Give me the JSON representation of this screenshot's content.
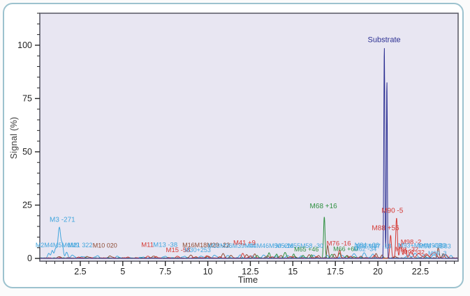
{
  "chart_data": {
    "type": "line",
    "title": "",
    "xlabel": "Time",
    "ylabel": "Signal (%)",
    "xlim": [
      0.12,
      24.72
    ],
    "ylim": [
      0,
      115
    ],
    "x_ticks": [
      2.5,
      5,
      7.5,
      10,
      12.5,
      15,
      17.5,
      20,
      22.5
    ],
    "x_minor_step": 0.5,
    "y_ticks": [
      0,
      25,
      50,
      75,
      100
    ],
    "y_minor_step": 5,
    "grid": false,
    "legend": "none",
    "plot_bg": "#e8e6f2",
    "plot_border": "#5f5f6b",
    "tick_label_color": "#1f1f1f",
    "colors": {
      "substrate": "#2b2f92",
      "metabolite_blue": "#41a5dd",
      "metabolite_red": "#d43a35",
      "metabolite_green": "#2e9040",
      "metabolite_brown": "#8c4a33"
    },
    "series": [
      {
        "name": "metabolites-blue",
        "color": "metabolite_blue",
        "noise": 0.45,
        "peaks": [
          [
            0.65,
            2.2,
            0.07
          ],
          [
            0.85,
            3.2,
            0.06
          ],
          [
            1.05,
            4.5,
            0.07
          ],
          [
            1.27,
            14.5,
            0.08
          ],
          [
            1.45,
            5.5,
            0.06
          ],
          [
            1.7,
            2.8,
            0.07
          ],
          [
            2.05,
            1.4,
            0.09
          ],
          [
            2.6,
            0.8,
            0.1
          ],
          [
            3.5,
            1.1,
            0.1
          ],
          [
            4.7,
            0.7,
            0.1
          ],
          [
            6.2,
            0.6,
            0.1
          ],
          [
            7.5,
            1.0,
            0.09
          ],
          [
            8.6,
            0.8,
            0.1
          ],
          [
            9.6,
            1.1,
            0.1
          ],
          [
            10.4,
            1.4,
            0.1
          ],
          [
            11.2,
            1.1,
            0.09
          ],
          [
            11.9,
            1.3,
            0.09
          ],
          [
            12.6,
            1.1,
            0.09
          ],
          [
            13.3,
            1.4,
            0.1
          ],
          [
            14.0,
            1.2,
            0.09
          ],
          [
            14.7,
            1.3,
            0.1
          ],
          [
            15.5,
            1.1,
            0.09
          ],
          [
            16.2,
            1.3,
            0.09
          ],
          [
            17.0,
            1.1,
            0.09
          ],
          [
            17.9,
            1.4,
            0.1
          ],
          [
            18.6,
            2.2,
            0.1
          ],
          [
            19.2,
            2.6,
            0.09
          ],
          [
            19.7,
            1.8,
            0.09
          ],
          [
            21.8,
            1.6,
            0.1
          ],
          [
            22.2,
            2.0,
            0.12
          ],
          [
            22.7,
            1.4,
            0.1
          ],
          [
            23.3,
            1.6,
            0.12
          ],
          [
            23.9,
            1.8,
            0.1
          ],
          [
            24.3,
            1.2,
            0.08
          ]
        ]
      },
      {
        "name": "metabolites-brown",
        "color": "metabolite_brown",
        "noise": 0.4,
        "peaks": [
          [
            1.3,
            0.7,
            0.08
          ],
          [
            2.9,
            0.9,
            0.09
          ],
          [
            4.25,
            1.1,
            0.09
          ],
          [
            6.8,
            1.0,
            0.09
          ],
          [
            9.0,
            1.2,
            0.1
          ],
          [
            10.0,
            1.0,
            0.09
          ],
          [
            10.9,
            1.9,
            0.08
          ],
          [
            11.35,
            1.4,
            0.07
          ],
          [
            12.3,
            1.5,
            0.08
          ],
          [
            12.75,
            1.8,
            0.07
          ],
          [
            13.5,
            1.1,
            0.08
          ],
          [
            14.3,
            1.3,
            0.08
          ],
          [
            15.1,
            1.0,
            0.08
          ],
          [
            15.95,
            1.6,
            0.07
          ],
          [
            16.5,
            1.3,
            0.07
          ],
          [
            17.05,
            6,
            0.05
          ],
          [
            17.45,
            1.8,
            0.07
          ],
          [
            18.2,
            1.2,
            0.08
          ],
          [
            19.0,
            1.0,
            0.08
          ],
          [
            19.9,
            2.2,
            0.06
          ],
          [
            20.25,
            1.6,
            0.06
          ],
          [
            21.0,
            1.0,
            0.07
          ],
          [
            22.9,
            1.6,
            0.09
          ],
          [
            23.55,
            5,
            0.055
          ],
          [
            23.85,
            1.8,
            0.07
          ]
        ]
      },
      {
        "name": "metabolites-green",
        "color": "metabolite_green",
        "noise": 0.3,
        "peaks": [
          [
            12.9,
            1.4,
            0.07
          ],
          [
            13.6,
            2.6,
            0.06
          ],
          [
            14.05,
            2.0,
            0.06
          ],
          [
            14.55,
            2.7,
            0.07
          ],
          [
            15.05,
            1.9,
            0.06
          ],
          [
            15.6,
            1.4,
            0.07
          ],
          [
            16.1,
            1.7,
            0.06
          ],
          [
            16.85,
            19.5,
            0.045
          ],
          [
            17.3,
            1.9,
            0.07
          ],
          [
            17.75,
            2.4,
            0.06
          ],
          [
            18.15,
            1.1,
            0.07
          ],
          [
            18.6,
            0.8,
            0.07
          ]
        ]
      },
      {
        "name": "metabolites-red",
        "color": "metabolite_red",
        "noise": 0.35,
        "peaks": [
          [
            2.4,
            0.5,
            0.09
          ],
          [
            5.3,
            0.5,
            0.09
          ],
          [
            6.5,
            0.9,
            0.08
          ],
          [
            6.95,
            0.7,
            0.08
          ],
          [
            8.2,
            1.0,
            0.08
          ],
          [
            9.3,
            0.8,
            0.08
          ],
          [
            9.95,
            1.2,
            0.08
          ],
          [
            10.7,
            0.8,
            0.08
          ],
          [
            12.05,
            2.3,
            0.07
          ],
          [
            12.5,
            1.2,
            0.07
          ],
          [
            13.8,
            0.7,
            0.08
          ],
          [
            14.9,
            0.8,
            0.08
          ],
          [
            16.4,
            0.8,
            0.08
          ],
          [
            17.75,
            4.0,
            0.06
          ],
          [
            18.4,
            1.0,
            0.08
          ],
          [
            19.8,
            1.4,
            0.07
          ],
          [
            20.75,
            10.5,
            0.05
          ],
          [
            21.1,
            19,
            0.048
          ],
          [
            21.35,
            6.5,
            0.06
          ],
          [
            21.6,
            4.5,
            0.07
          ],
          [
            21.95,
            3.0,
            0.09
          ],
          [
            22.4,
            2.4,
            0.12
          ],
          [
            22.85,
            2.0,
            0.1
          ],
          [
            23.3,
            2.6,
            0.15
          ],
          [
            24.0,
            1.6,
            0.1
          ]
        ]
      },
      {
        "name": "substrate",
        "color": "substrate",
        "noise": 0.12,
        "peaks": [
          [
            20.38,
            100,
            0.03
          ],
          [
            20.53,
            84,
            0.026
          ]
        ]
      }
    ],
    "annotations": [
      {
        "text": "M3 -271",
        "color": "metabolite_blue",
        "x": 1.45,
        "y": 17.2,
        "size": 10
      },
      {
        "text": "M2M4M5M6M9",
        "color": "metabolite_blue",
        "x": 1.15,
        "y": 5.2,
        "size": 9
      },
      {
        "text": "M21 322",
        "color": "metabolite_blue",
        "x": 2.5,
        "y": 5.2,
        "size": 9
      },
      {
        "text": "M10 020",
        "color": "metabolite_brown",
        "x": 3.95,
        "y": 5.0,
        "size": 9
      },
      {
        "text": "M11",
        "color": "metabolite_red",
        "x": 6.45,
        "y": 5.4,
        "size": 9.5
      },
      {
        "text": "M13 -38",
        "color": "metabolite_blue",
        "x": 7.5,
        "y": 5.4,
        "size": 9.5
      },
      {
        "text": "M15 -58",
        "color": "metabolite_red",
        "x": 8.25,
        "y": 2.9,
        "size": 9.5
      },
      {
        "text": "M30+253",
        "color": "metabolite_blue",
        "x": 9.4,
        "y": 2.9,
        "size": 9
      },
      {
        "text": "M16M18M29 -22",
        "color": "metabolite_brown",
        "x": 9.9,
        "y": 5.3,
        "size": 9
      },
      {
        "text": "M33M36M39 -44",
        "color": "metabolite_blue",
        "x": 11.4,
        "y": 4.9,
        "size": 9
      },
      {
        "text": "M41 +9",
        "color": "metabolite_red",
        "x": 12.15,
        "y": 6.4,
        "size": 9.5
      },
      {
        "text": "M44M46M50 +16",
        "color": "metabolite_blue",
        "x": 13.6,
        "y": 4.9,
        "size": 9
      },
      {
        "text": "M52M55M58 -30",
        "color": "metabolite_blue",
        "x": 15.4,
        "y": 4.9,
        "size": 9
      },
      {
        "text": "M65 +46",
        "color": "metabolite_green",
        "x": 15.8,
        "y": 3.3,
        "size": 9
      },
      {
        "text": "M68 +16",
        "color": "metabolite_green",
        "x": 16.8,
        "y": 23.6,
        "size": 10
      },
      {
        "text": "M76 -16",
        "color": "metabolite_red",
        "x": 17.7,
        "y": 6.1,
        "size": 9.5
      },
      {
        "text": "M66 +60",
        "color": "metabolite_green",
        "x": 18.1,
        "y": 3.5,
        "size": 9
      },
      {
        "text": "M84 +36",
        "color": "metabolite_blue",
        "x": 19.35,
        "y": 5.3,
        "size": 9
      },
      {
        "text": "M62 -34",
        "color": "metabolite_blue",
        "x": 19.25,
        "y": 3.4,
        "size": 9
      },
      {
        "text": "M85M87 -18",
        "color": "metabolite_blue",
        "x": 19.75,
        "y": 4.8,
        "size": 9
      },
      {
        "text": "Substrate",
        "color": "substrate",
        "x": 20.37,
        "y": 101.5,
        "size": 11
      },
      {
        "text": "M88 +56",
        "color": "metabolite_red",
        "x": 20.45,
        "y": 13.2,
        "size": 10
      },
      {
        "text": "M90 -5",
        "color": "metabolite_red",
        "x": 20.85,
        "y": 21.4,
        "size": 10
      },
      {
        "text": "M98 -2",
        "color": "metabolite_red",
        "x": 21.95,
        "y": 6.7,
        "size": 9.5
      },
      {
        "text": "M91 -32",
        "color": "metabolite_red",
        "x": 21.7,
        "y": 3.3,
        "size": 9
      },
      {
        "text": "M93+M94M95B3",
        "color": "metabolite_blue",
        "x": 22.6,
        "y": 5.0,
        "size": 9
      },
      {
        "text": "M96 +3B83",
        "color": "metabolite_blue",
        "x": 23.35,
        "y": 4.7,
        "size": 9
      },
      {
        "text": "M92 -32",
        "color": "metabolite_red",
        "x": 22.1,
        "y": 2.0,
        "size": 8.5
      },
      {
        "text": "M99 -3",
        "color": "metabolite_blue",
        "x": 23.5,
        "y": 1.5,
        "size": 8.5
      }
    ]
  }
}
